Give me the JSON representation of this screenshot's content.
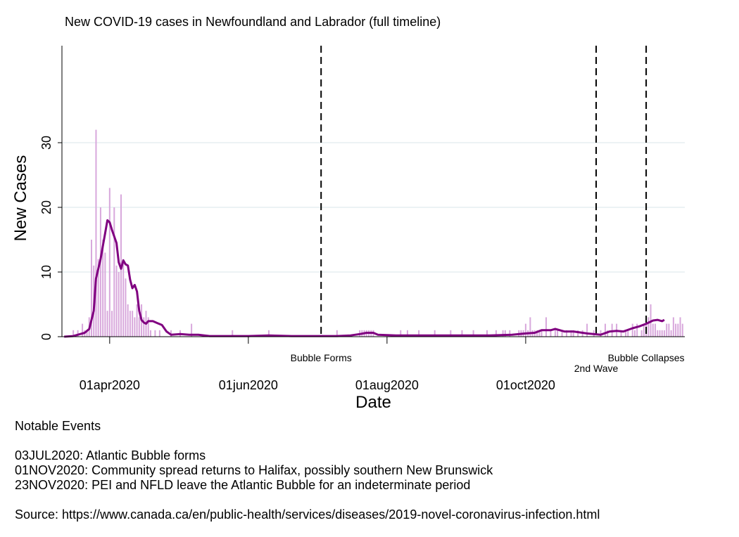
{
  "chart_data": {
    "type": "bar",
    "title": "New COVID-19 cases in Newfoundland and Labrador (full timeline)",
    "xlabel": "Date",
    "ylabel": "New Cases",
    "x_start_date": "2020-03-12",
    "x_end_date": "2020-12-10",
    "xlim": [
      "2020-03-11",
      "2020-12-10"
    ],
    "ylim": [
      0,
      45
    ],
    "yticks": [
      0,
      10,
      20,
      30
    ],
    "xticks": [
      "2020-04-01",
      "2020-06-01",
      "2020-08-01",
      "2020-10-01"
    ],
    "xtick_labels": [
      "01apr2020",
      "01jun2020",
      "01aug2020",
      "01oct2020"
    ],
    "grid": "horizontal",
    "bar_color": "#d8a8dc",
    "line_color": "#800080",
    "series": [
      {
        "name": "New Cases",
        "kind": "bar",
        "dates": [
          "2020-03-16",
          "2020-03-18",
          "2020-03-20",
          "2020-03-21",
          "2020-03-22",
          "2020-03-23",
          "2020-03-24",
          "2020-03-25",
          "2020-03-26",
          "2020-03-27",
          "2020-03-28",
          "2020-03-29",
          "2020-03-30",
          "2020-03-31",
          "2020-04-01",
          "2020-04-02",
          "2020-04-03",
          "2020-04-04",
          "2020-04-05",
          "2020-04-06",
          "2020-04-07",
          "2020-04-08",
          "2020-04-09",
          "2020-04-10",
          "2020-04-11",
          "2020-04-12",
          "2020-04-13",
          "2020-04-14",
          "2020-04-15",
          "2020-04-16",
          "2020-04-17",
          "2020-04-18",
          "2020-04-19",
          "2020-04-21",
          "2020-04-23",
          "2020-04-28",
          "2020-05-02",
          "2020-05-07",
          "2020-05-25",
          "2020-06-10",
          "2020-07-10",
          "2020-07-20",
          "2020-07-21",
          "2020-07-22",
          "2020-07-23",
          "2020-07-24",
          "2020-07-25",
          "2020-07-26",
          "2020-08-07",
          "2020-08-10",
          "2020-08-15",
          "2020-08-22",
          "2020-08-29",
          "2020-09-03",
          "2020-09-08",
          "2020-09-14",
          "2020-09-18",
          "2020-09-21",
          "2020-09-22",
          "2020-09-24",
          "2020-09-28",
          "2020-09-29",
          "2020-09-30",
          "2020-10-01",
          "2020-10-02",
          "2020-10-03",
          "2020-10-04",
          "2020-10-05",
          "2020-10-06",
          "2020-10-07",
          "2020-10-08",
          "2020-10-10",
          "2020-10-12",
          "2020-10-14",
          "2020-10-15",
          "2020-10-17",
          "2020-10-19",
          "2020-10-21",
          "2020-10-22",
          "2020-10-24",
          "2020-10-26",
          "2020-10-28",
          "2020-10-31",
          "2020-11-03",
          "2020-11-05",
          "2020-11-06",
          "2020-11-08",
          "2020-11-10",
          "2020-11-12",
          "2020-11-14",
          "2020-11-15",
          "2020-11-17",
          "2020-11-18",
          "2020-11-19",
          "2020-11-21",
          "2020-11-22",
          "2020-11-23",
          "2020-11-24",
          "2020-11-25",
          "2020-11-26",
          "2020-11-27",
          "2020-11-28",
          "2020-11-29",
          "2020-11-30",
          "2020-12-01",
          "2020-12-02",
          "2020-12-03",
          "2020-12-04",
          "2020-12-05",
          "2020-12-06",
          "2020-12-07",
          "2020-12-08",
          "2020-12-09"
        ],
        "values": [
          1,
          1,
          2,
          1,
          1,
          3,
          15,
          11,
          32,
          12,
          20,
          15,
          13,
          4,
          23,
          4,
          20,
          11,
          10,
          22,
          12,
          9,
          5,
          4,
          4,
          3,
          5,
          3,
          5,
          3,
          4,
          3,
          1,
          1,
          1,
          1,
          1,
          2,
          1,
          1,
          1,
          1,
          1,
          1,
          1,
          1,
          1,
          1,
          1,
          1,
          1,
          1,
          1,
          1,
          1,
          1,
          1,
          1,
          1,
          1,
          1,
          1,
          1,
          2,
          1,
          3,
          1,
          1,
          1,
          1,
          1,
          3,
          1,
          1,
          1,
          1,
          1,
          1,
          1,
          1,
          1,
          2,
          1,
          1,
          2,
          1,
          2,
          2,
          1,
          1,
          1,
          2,
          1,
          2,
          1,
          2,
          2,
          3,
          5,
          2,
          2,
          1,
          1,
          1,
          1,
          2,
          2,
          1,
          3,
          2,
          2,
          3,
          2
        ]
      },
      {
        "name": "7-day average",
        "kind": "line",
        "points": [
          [
            "2020-03-12",
            0
          ],
          [
            "2020-03-16",
            0.1
          ],
          [
            "2020-03-19",
            0.4
          ],
          [
            "2020-03-21",
            0.6
          ],
          [
            "2020-03-23",
            1.2
          ],
          [
            "2020-03-25",
            4
          ],
          [
            "2020-03-26",
            9
          ],
          [
            "2020-03-28",
            12
          ],
          [
            "2020-03-29",
            14
          ],
          [
            "2020-03-30",
            16
          ],
          [
            "2020-03-31",
            18
          ],
          [
            "2020-04-01",
            17.7
          ],
          [
            "2020-04-02",
            16.5
          ],
          [
            "2020-04-03",
            15.5
          ],
          [
            "2020-04-04",
            14.5
          ],
          [
            "2020-04-05",
            11.5
          ],
          [
            "2020-04-06",
            10.5
          ],
          [
            "2020-04-07",
            11.8
          ],
          [
            "2020-04-08",
            11.2
          ],
          [
            "2020-04-09",
            11.0
          ],
          [
            "2020-04-10",
            8.8
          ],
          [
            "2020-04-11",
            7.5
          ],
          [
            "2020-04-12",
            8.0
          ],
          [
            "2020-04-13",
            7.0
          ],
          [
            "2020-04-14",
            4.0
          ],
          [
            "2020-04-15",
            2.6
          ],
          [
            "2020-04-16",
            2.2
          ],
          [
            "2020-04-17",
            2.0
          ],
          [
            "2020-04-18",
            2.4
          ],
          [
            "2020-04-20",
            2.4
          ],
          [
            "2020-04-22",
            2.1
          ],
          [
            "2020-04-24",
            1.8
          ],
          [
            "2020-04-26",
            0.8
          ],
          [
            "2020-04-28",
            0.3
          ],
          [
            "2020-05-02",
            0.4
          ],
          [
            "2020-05-06",
            0.3
          ],
          [
            "2020-05-10",
            0.3
          ],
          [
            "2020-05-15",
            0.1
          ],
          [
            "2020-05-20",
            0.1
          ],
          [
            "2020-05-25",
            0.1
          ],
          [
            "2020-06-01",
            0.1
          ],
          [
            "2020-06-10",
            0.2
          ],
          [
            "2020-06-20",
            0.1
          ],
          [
            "2020-07-01",
            0.1
          ],
          [
            "2020-07-10",
            0.1
          ],
          [
            "2020-07-16",
            0.2
          ],
          [
            "2020-07-20",
            0.4
          ],
          [
            "2020-07-23",
            0.6
          ],
          [
            "2020-07-26",
            0.6
          ],
          [
            "2020-07-28",
            0.3
          ],
          [
            "2020-08-05",
            0.2
          ],
          [
            "2020-08-15",
            0.2
          ],
          [
            "2020-08-25",
            0.2
          ],
          [
            "2020-09-05",
            0.2
          ],
          [
            "2020-09-15",
            0.2
          ],
          [
            "2020-09-25",
            0.3
          ],
          [
            "2020-10-01",
            0.5
          ],
          [
            "2020-10-05",
            0.6
          ],
          [
            "2020-10-08",
            1.0
          ],
          [
            "2020-10-12",
            1.0
          ],
          [
            "2020-10-14",
            1.2
          ],
          [
            "2020-10-18",
            0.8
          ],
          [
            "2020-10-22",
            0.8
          ],
          [
            "2020-10-28",
            0.5
          ],
          [
            "2020-11-03",
            0.3
          ],
          [
            "2020-11-07",
            0.8
          ],
          [
            "2020-11-10",
            0.9
          ],
          [
            "2020-11-13",
            0.8
          ],
          [
            "2020-11-17",
            1.3
          ],
          [
            "2020-11-20",
            1.6
          ],
          [
            "2020-11-23",
            2.0
          ],
          [
            "2020-11-26",
            2.5
          ],
          [
            "2020-11-28",
            2.6
          ],
          [
            "2020-11-30",
            2.4
          ],
          [
            "2020-12-01",
            2.6
          ]
        ]
      }
    ],
    "events": [
      {
        "date": "2020-07-03",
        "label": "Bubble Forms"
      },
      {
        "date": "2020-11-01",
        "label": "2nd Wave"
      },
      {
        "date": "2020-11-23",
        "label": "Bubble Collapses"
      }
    ]
  },
  "notes": {
    "heading": "Notable Events",
    "lines": [
      "03JUL2020: Atlantic Bubble forms",
      "01NOV2020: Community spread returns to Halifax, possibly southern New Brunswick",
      "23NOV2020: PEI and NFLD leave the Atlantic Bubble for an indeterminate period"
    ],
    "source": "Source: https://www.canada.ca/en/public-health/services/diseases/2019-novel-coronavirus-infection.html"
  }
}
